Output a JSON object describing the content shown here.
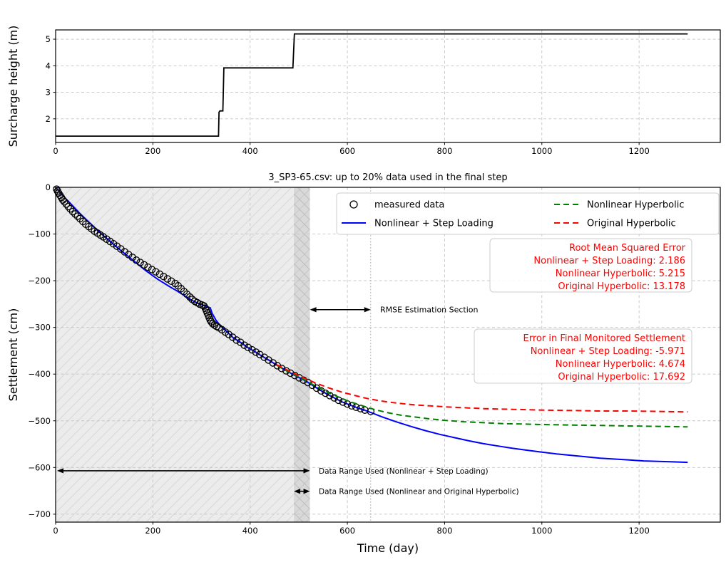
{
  "figure": {
    "background": "#ffffff"
  },
  "chart_data": [
    {
      "id": "surcharge",
      "type": "line",
      "title": "",
      "xlabel": "",
      "ylabel": "Surcharge height (m)",
      "xlim": [
        0,
        1367
      ],
      "ylim": [
        1.11,
        5.35
      ],
      "xticks": [
        0,
        200,
        400,
        600,
        800,
        1000,
        1200
      ],
      "yticks": [
        2,
        3,
        4,
        5
      ],
      "grid": true,
      "series": [
        {
          "name": "surcharge-height",
          "color": "#000000",
          "style": "solid",
          "width": 1.8,
          "points": [
            [
              0,
              1.35
            ],
            [
              335,
              1.35
            ],
            [
              336,
              2.25
            ],
            [
              338,
              2.3
            ],
            [
              344,
              2.3
            ],
            [
              346,
              3.92
            ],
            [
              488,
              3.92
            ],
            [
              491,
              5.2
            ],
            [
              1300,
              5.2
            ]
          ]
        }
      ]
    },
    {
      "id": "settlement",
      "type": "scatter+line",
      "title": "3_SP3-65.csv: up to 20% data used in the final step",
      "xlabel": "Time (day)",
      "ylabel": "Settlement (cm)",
      "xlim": [
        0,
        1367
      ],
      "ylim": [
        -717,
        0
      ],
      "xticks": [
        0,
        200,
        400,
        600,
        800,
        1000,
        1200
      ],
      "yticks": [
        0,
        -100,
        -200,
        -300,
        -400,
        -500,
        -600,
        -700
      ],
      "grid": true,
      "shaded_regions": [
        {
          "name": "data-range-step-loading",
          "x0": 0,
          "x1": 523,
          "hatch": "/",
          "fill": "#ececec",
          "hatch_color": "#d8d8d8"
        },
        {
          "name": "data-range-hyperbolic",
          "x0": 490,
          "x1": 523,
          "hatch": "\\",
          "fill": "rgba(120,120,120,0.16)",
          "hatch_color": "#bdbdbd"
        }
      ],
      "vlines": [
        {
          "x": 648,
          "style": "dotted",
          "color": "#999999"
        }
      ],
      "measured": {
        "name": "measured data",
        "marker": "circle",
        "color": "#000000",
        "points": [
          [
            2,
            -4
          ],
          [
            4,
            -8
          ],
          [
            6,
            -12
          ],
          [
            9,
            -17
          ],
          [
            12,
            -22
          ],
          [
            15,
            -27
          ],
          [
            18,
            -31
          ],
          [
            22,
            -36
          ],
          [
            26,
            -41
          ],
          [
            30,
            -46
          ],
          [
            35,
            -52
          ],
          [
            40,
            -57
          ],
          [
            45,
            -62
          ],
          [
            50,
            -67
          ],
          [
            56,
            -73
          ],
          [
            62,
            -79
          ],
          [
            68,
            -84
          ],
          [
            74,
            -89
          ],
          [
            80,
            -94
          ],
          [
            86,
            -98
          ],
          [
            92,
            -102
          ],
          [
            98,
            -106
          ],
          [
            105,
            -111
          ],
          [
            112,
            -116
          ],
          [
            119,
            -121
          ],
          [
            126,
            -126
          ],
          [
            134,
            -132
          ],
          [
            142,
            -138
          ],
          [
            150,
            -144
          ],
          [
            158,
            -150
          ],
          [
            166,
            -156
          ],
          [
            174,
            -161
          ],
          [
            182,
            -166
          ],
          [
            190,
            -171
          ],
          [
            198,
            -176
          ],
          [
            206,
            -181
          ],
          [
            214,
            -186
          ],
          [
            222,
            -191
          ],
          [
            230,
            -196
          ],
          [
            238,
            -201
          ],
          [
            246,
            -206
          ],
          [
            252,
            -211
          ],
          [
            258,
            -217
          ],
          [
            264,
            -223
          ],
          [
            270,
            -229
          ],
          [
            276,
            -235
          ],
          [
            281,
            -240
          ],
          [
            286,
            -244
          ],
          [
            291,
            -247
          ],
          [
            296,
            -250
          ],
          [
            301,
            -252
          ],
          [
            305,
            -254
          ],
          [
            308,
            -259
          ],
          [
            310,
            -264
          ],
          [
            312,
            -269
          ],
          [
            314,
            -274
          ],
          [
            316,
            -279
          ],
          [
            318,
            -284
          ],
          [
            320,
            -288
          ],
          [
            323,
            -292
          ],
          [
            327,
            -295
          ],
          [
            331,
            -298
          ],
          [
            336,
            -301
          ],
          [
            342,
            -305
          ],
          [
            349,
            -310
          ],
          [
            356,
            -315
          ],
          [
            364,
            -321
          ],
          [
            372,
            -327
          ],
          [
            380,
            -332
          ],
          [
            388,
            -338
          ],
          [
            396,
            -343
          ],
          [
            404,
            -348
          ],
          [
            412,
            -353
          ],
          [
            420,
            -358
          ],
          [
            429,
            -364
          ],
          [
            438,
            -370
          ],
          [
            447,
            -376
          ],
          [
            456,
            -382
          ],
          [
            465,
            -388
          ],
          [
            474,
            -393
          ],
          [
            483,
            -398
          ],
          [
            492,
            -403
          ],
          [
            501,
            -408
          ],
          [
            510,
            -413
          ],
          [
            519,
            -418
          ],
          [
            528,
            -424
          ],
          [
            537,
            -430
          ],
          [
            546,
            -436
          ],
          [
            555,
            -441
          ],
          [
            564,
            -446
          ],
          [
            573,
            -451
          ],
          [
            582,
            -456
          ],
          [
            591,
            -460
          ],
          [
            600,
            -464
          ],
          [
            609,
            -468
          ],
          [
            618,
            -471
          ],
          [
            627,
            -474
          ],
          [
            636,
            -477
          ],
          [
            648,
            -480
          ]
        ]
      },
      "series": [
        {
          "name": "Nonlinear + Step Loading",
          "color": "#0000ff",
          "style": "solid",
          "width": 2,
          "points": [
            [
              0,
              0
            ],
            [
              15,
              -18
            ],
            [
              30,
              -34
            ],
            [
              50,
              -56
            ],
            [
              70,
              -76
            ],
            [
              90,
              -96
            ],
            [
              110,
              -114
            ],
            [
              135,
              -136
            ],
            [
              160,
              -157
            ],
            [
              185,
              -178
            ],
            [
              210,
              -197
            ],
            [
              235,
              -213
            ],
            [
              250,
              -222
            ],
            [
              262,
              -230
            ],
            [
              272,
              -237
            ],
            [
              282,
              -243
            ],
            [
              292,
              -248
            ],
            [
              300,
              -251
            ],
            [
              310,
              -255
            ],
            [
              318,
              -258
            ],
            [
              322,
              -270
            ],
            [
              330,
              -285
            ],
            [
              338,
              -295
            ],
            [
              348,
              -305
            ],
            [
              365,
              -322
            ],
            [
              380,
              -332
            ],
            [
              395,
              -343
            ],
            [
              410,
              -352
            ],
            [
              425,
              -362
            ],
            [
              440,
              -371
            ],
            [
              455,
              -381
            ],
            [
              470,
              -390
            ],
            [
              485,
              -399
            ],
            [
              500,
              -407
            ],
            [
              515,
              -415
            ],
            [
              530,
              -425
            ],
            [
              545,
              -435
            ],
            [
              560,
              -444
            ],
            [
              575,
              -452
            ],
            [
              590,
              -460
            ],
            [
              605,
              -466
            ],
            [
              620,
              -472
            ],
            [
              635,
              -477
            ],
            [
              650,
              -483
            ],
            [
              670,
              -491
            ],
            [
              700,
              -502
            ],
            [
              730,
              -512
            ],
            [
              760,
              -521
            ],
            [
              790,
              -529
            ],
            [
              820,
              -536
            ],
            [
              850,
              -543
            ],
            [
              880,
              -549
            ],
            [
              910,
              -554
            ],
            [
              940,
              -559
            ],
            [
              970,
              -563
            ],
            [
              1000,
              -567
            ],
            [
              1030,
              -571
            ],
            [
              1060,
              -574
            ],
            [
              1090,
              -577
            ],
            [
              1120,
              -580
            ],
            [
              1150,
              -582
            ],
            [
              1180,
              -584
            ],
            [
              1210,
              -586
            ],
            [
              1240,
              -587
            ],
            [
              1270,
              -588
            ],
            [
              1300,
              -589
            ]
          ]
        },
        {
          "name": "Nonlinear Hyperbolic",
          "color": "#008000",
          "style": "dashed",
          "width": 2,
          "points": [
            [
              455,
              -381
            ],
            [
              470,
              -390
            ],
            [
              485,
              -398
            ],
            [
              500,
              -406
            ],
            [
              515,
              -414
            ],
            [
              530,
              -423
            ],
            [
              545,
              -431
            ],
            [
              560,
              -439
            ],
            [
              575,
              -446
            ],
            [
              590,
              -453
            ],
            [
              605,
              -459
            ],
            [
              620,
              -464
            ],
            [
              640,
              -471
            ],
            [
              660,
              -477
            ],
            [
              685,
              -483
            ],
            [
              710,
              -488
            ],
            [
              740,
              -492
            ],
            [
              770,
              -496
            ],
            [
              800,
              -499
            ],
            [
              840,
              -502
            ],
            [
              880,
              -504
            ],
            [
              920,
              -506
            ],
            [
              960,
              -507
            ],
            [
              1000,
              -508
            ],
            [
              1060,
              -509
            ],
            [
              1120,
              -510
            ],
            [
              1180,
              -511
            ],
            [
              1240,
              -512
            ],
            [
              1300,
              -513
            ]
          ]
        },
        {
          "name": "Original Hyperbolic",
          "color": "#ff0000",
          "style": "dashed",
          "width": 2,
          "points": [
            [
              455,
              -380
            ],
            [
              470,
              -388
            ],
            [
              485,
              -396
            ],
            [
              500,
              -403
            ],
            [
              515,
              -410
            ],
            [
              530,
              -417
            ],
            [
              545,
              -423
            ],
            [
              560,
              -429
            ],
            [
              575,
              -434
            ],
            [
              590,
              -439
            ],
            [
              605,
              -443
            ],
            [
              620,
              -447
            ],
            [
              640,
              -452
            ],
            [
              660,
              -456
            ],
            [
              685,
              -460
            ],
            [
              710,
              -463
            ],
            [
              740,
              -466
            ],
            [
              770,
              -468
            ],
            [
              800,
              -470
            ],
            [
              840,
              -472
            ],
            [
              880,
              -474
            ],
            [
              920,
              -475
            ],
            [
              960,
              -476
            ],
            [
              1000,
              -477
            ],
            [
              1060,
              -478
            ],
            [
              1120,
              -479
            ],
            [
              1180,
              -479
            ],
            [
              1240,
              -480
            ],
            [
              1300,
              -481
            ]
          ]
        }
      ],
      "legend": {
        "columns": 2,
        "border_color": "#cccccc",
        "entries": [
          {
            "label": "measured data",
            "marker": "circle",
            "color": "#000000"
          },
          {
            "label": "Nonlinear + Step Loading",
            "marker": "line",
            "color": "#0000ff"
          },
          {
            "label": "Nonlinear Hyperbolic",
            "marker": "dashed-line",
            "color": "#008000"
          },
          {
            "label": "Original Hyperbolic",
            "marker": "dashed-line",
            "color": "#ff0000"
          }
        ]
      },
      "annotations": {
        "rmse_box": {
          "text_color": "#ff0000",
          "border_color": "#cccccc",
          "lines": [
            "Root Mean Squared Error",
            "Nonlinear + Step Loading: 2.186",
            "Nonlinear Hyperbolic: 5.215",
            "Original Hyperbolic: 13.178"
          ]
        },
        "final_error_box": {
          "text_color": "#ff0000",
          "border_color": "#cccccc",
          "lines": [
            "Error in Final Monitored Settlement",
            "Nonlinear + Step Loading: -5.971",
            "Nonlinear Hyperbolic: 4.674",
            "Original Hyperbolic: 17.692"
          ]
        },
        "arrows": [
          {
            "label": "RMSE Estimation Section",
            "x0": 523,
            "x1": 648,
            "y": -262
          },
          {
            "label": "Data Range Used (Nonlinear + Step Loading)",
            "x0": 3,
            "x1": 523,
            "y": -607
          },
          {
            "label": "Data Range Used (Nonlinear and Original Hyperbolic)",
            "x0": 490,
            "x1": 523,
            "y": -651
          }
        ]
      }
    }
  ]
}
